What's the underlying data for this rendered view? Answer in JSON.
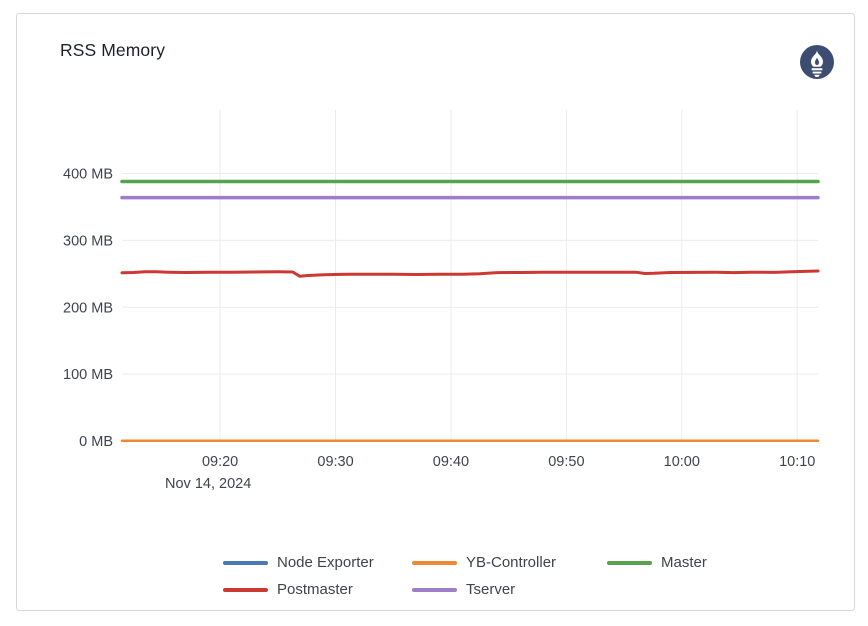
{
  "panel": {
    "title": "RSS Memory",
    "logo_icon": "prometheus-logo"
  },
  "chart_data": {
    "type": "line",
    "title": "RSS Memory",
    "x": {
      "date_label": "Nov 14, 2024",
      "domain_minutes": [
        11.5,
        71.8
      ],
      "ticks": [
        {
          "minute": 20,
          "label": "09:20"
        },
        {
          "minute": 30,
          "label": "09:30"
        },
        {
          "minute": 40,
          "label": "09:40"
        },
        {
          "minute": 50,
          "label": "09:50"
        },
        {
          "minute": 60,
          "label": "10:00"
        },
        {
          "minute": 70,
          "label": "10:10"
        }
      ]
    },
    "y": {
      "unit": "MB",
      "domain": [
        0,
        495
      ],
      "ticks": [
        {
          "value": 0,
          "label": "0 MB"
        },
        {
          "value": 100,
          "label": "100 MB"
        },
        {
          "value": 200,
          "label": "200 MB"
        },
        {
          "value": 300,
          "label": "300 MB"
        },
        {
          "value": 400,
          "label": "400 MB"
        }
      ]
    },
    "grid": true,
    "legend_position": "bottom",
    "colors": {
      "grid": "#ececec",
      "axis_text": "#3f434b",
      "logo_navy": "#3d4d71"
    },
    "series": [
      {
        "name": "Node Exporter",
        "color": "#4879b2",
        "width": 2,
        "points": [
          [
            11.5,
            0.5
          ],
          [
            71.8,
            0.5
          ]
        ]
      },
      {
        "name": "YB-Controller",
        "color": "#ef8733",
        "width": 2.5,
        "points": [
          [
            11.5,
            0.5
          ],
          [
            71.8,
            0.5
          ]
        ]
      },
      {
        "name": "Master",
        "color": "#58a14e",
        "width": 3.5,
        "points": [
          [
            11.5,
            388
          ],
          [
            71.8,
            388
          ]
        ]
      },
      {
        "name": "Postmaster",
        "color": "#cc3932",
        "width": 3,
        "points": [
          [
            11.5,
            251.5
          ],
          [
            12.5,
            252
          ],
          [
            13.5,
            253
          ],
          [
            14.5,
            253
          ],
          [
            15.5,
            252.5
          ],
          [
            17,
            252
          ],
          [
            19,
            252.3
          ],
          [
            21,
            252.3
          ],
          [
            23,
            252.8
          ],
          [
            25,
            253
          ],
          [
            26.3,
            252.8
          ],
          [
            26.9,
            246.3
          ],
          [
            27.6,
            247.5
          ],
          [
            29,
            248.5
          ],
          [
            31,
            249.3
          ],
          [
            33,
            249.3
          ],
          [
            35,
            249.3
          ],
          [
            37,
            249
          ],
          [
            39,
            249.3
          ],
          [
            41,
            249.5
          ],
          [
            42.5,
            250
          ],
          [
            44,
            251.8
          ],
          [
            46,
            252
          ],
          [
            48,
            252.3
          ],
          [
            50,
            252.3
          ],
          [
            52,
            252.5
          ],
          [
            54,
            252.3
          ],
          [
            56,
            252.5
          ],
          [
            56.8,
            250.5
          ],
          [
            57.6,
            250.8
          ],
          [
            59,
            252
          ],
          [
            61,
            252.2
          ],
          [
            63,
            252.3
          ],
          [
            64.5,
            251.8
          ],
          [
            66,
            252.5
          ],
          [
            68,
            252.2
          ],
          [
            69.5,
            253
          ],
          [
            71,
            254
          ],
          [
            71.8,
            254.3
          ]
        ]
      },
      {
        "name": "Tserver",
        "color": "#a07dc9",
        "width": 3.5,
        "points": [
          [
            11.5,
            364
          ],
          [
            71.8,
            364
          ]
        ]
      }
    ]
  }
}
